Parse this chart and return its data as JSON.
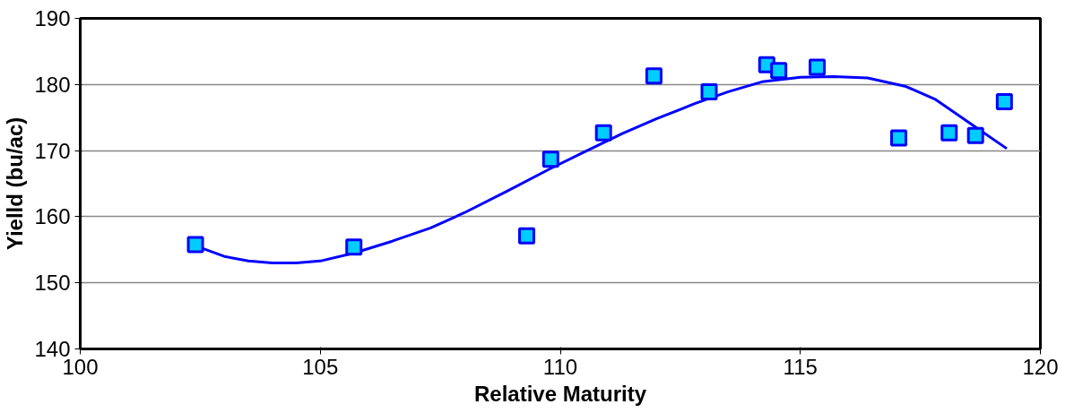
{
  "chart_data": {
    "type": "scatter",
    "xlabel": "Relative Maturity",
    "ylabel": "Yielld (bu/ac)",
    "xlim": [
      100,
      120
    ],
    "xticks": [
      100,
      105,
      110,
      115,
      120
    ],
    "ylim": [
      140,
      190
    ],
    "yticks": [
      140,
      150,
      160,
      170,
      180,
      190
    ],
    "grid": "y",
    "series": [
      {
        "marker": "square",
        "color": "#00ccff",
        "x": [
          102.4,
          105.7,
          109.3,
          109.8,
          110.9,
          111.95,
          113.1,
          114.3,
          114.55,
          115.35,
          117.05,
          118.1,
          118.65,
          119.25
        ],
        "values": [
          155.8,
          155.4,
          157.1,
          168.7,
          172.7,
          181.3,
          178.9,
          183.0,
          182.1,
          182.6,
          171.9,
          172.7,
          172.3,
          177.4
        ]
      },
      {
        "type": "line",
        "color": "#0000ff",
        "x": [
          102.4,
          103.0,
          103.5,
          104.0,
          104.5,
          105.0,
          105.7,
          106.5,
          107.3,
          108.0,
          108.9,
          109.8,
          110.5,
          111.3,
          112.0,
          112.8,
          113.5,
          114.2,
          115.0,
          115.7,
          116.4,
          117.2,
          117.8,
          118.2,
          118.7,
          119.3
        ],
        "values": [
          155.6,
          154.0,
          153.3,
          153.0,
          153.0,
          153.3,
          154.5,
          156.3,
          158.3,
          160.6,
          163.9,
          167.3,
          169.8,
          172.6,
          174.8,
          177.1,
          178.9,
          180.4,
          181.1,
          181.2,
          181.0,
          179.7,
          177.8,
          175.8,
          173.3,
          170.3
        ]
      }
    ]
  }
}
